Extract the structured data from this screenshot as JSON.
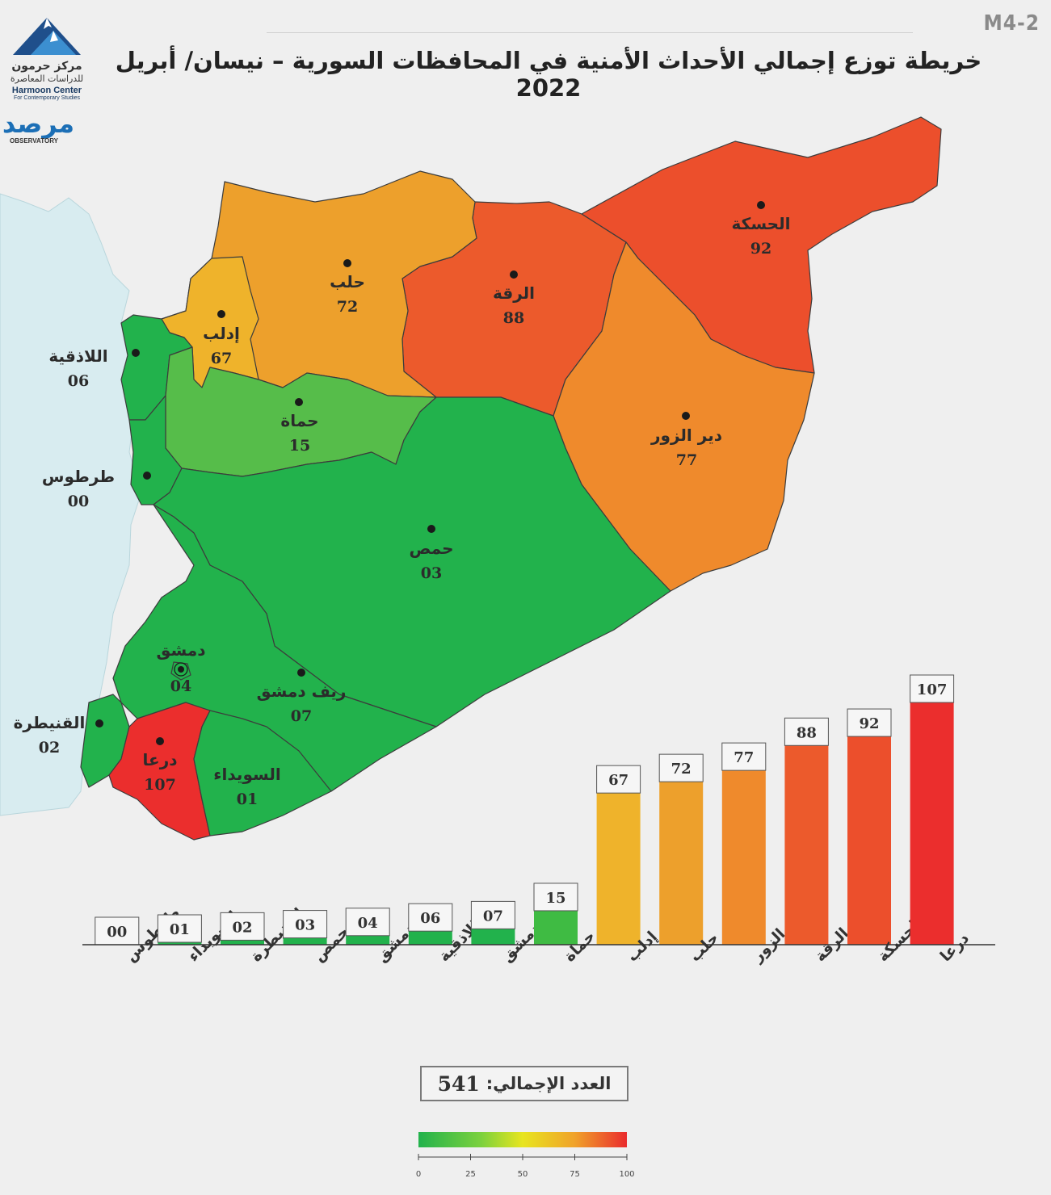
{
  "page_code": "M4-2",
  "title": "خريطة توزع إجمالي الأحداث الأمنية في المحافظات السورية – نيسان/ أبريل 2022",
  "logo": {
    "name_ar": "مركز حرمون",
    "subtitle_ar": "للدراسات المعاصرة",
    "name_en": "Harmoon Center",
    "subtitle_en": "For Contemporary Studies",
    "observatory_ar": "مرصد",
    "observatory_en": "OBSERVATORY"
  },
  "colors": {
    "sea": "#d8ecf0",
    "green": "#22b24c",
    "light_green": "#56bd4a",
    "yellow_orange": "#efb32b",
    "orange": "#eda02c",
    "dark_orange": "#ef8a2c",
    "red_orange": "#ec5a2c",
    "red": "#eb2e2d"
  },
  "map_labels": [
    {
      "id": "hasakah",
      "name": "الحسكة",
      "value": "92"
    },
    {
      "id": "raqqa",
      "name": "الرقة",
      "value": "88"
    },
    {
      "id": "aleppo",
      "name": "حلب",
      "value": "72"
    },
    {
      "id": "idlib",
      "name": "إدلب",
      "value": "67"
    },
    {
      "id": "latakia",
      "name": "اللاذقية",
      "value": "06"
    },
    {
      "id": "hama",
      "name": "حماة",
      "value": "15"
    },
    {
      "id": "deir",
      "name": "دير الزور",
      "value": "77"
    },
    {
      "id": "tartus",
      "name": "طرطوس",
      "value": "00"
    },
    {
      "id": "homs",
      "name": "حمص",
      "value": "03"
    },
    {
      "id": "damascus",
      "name": "دمشق",
      "value": "04"
    },
    {
      "id": "rifdimashq",
      "name": "ريف دمشق",
      "value": "07"
    },
    {
      "id": "quneitra",
      "name": "القنيطرة",
      "value": "02"
    },
    {
      "id": "daraa",
      "name": "درعا",
      "value": "107"
    },
    {
      "id": "suwayda",
      "name": "السويداء",
      "value": "01"
    }
  ],
  "chart_data": {
    "type": "bar",
    "categories": [
      "طرطوس",
      "السويداء",
      "القنيطرة",
      "حمص",
      "دمشق",
      "اللاذقية",
      "ريف دمشق",
      "حماة",
      "إدلب",
      "حلب",
      "دير الزور",
      "الرقة",
      "الحسكة",
      "درعا"
    ],
    "values": [
      0,
      1,
      2,
      3,
      4,
      6,
      7,
      15,
      67,
      72,
      77,
      88,
      92,
      107
    ],
    "value_labels": [
      "00",
      "01",
      "02",
      "03",
      "04",
      "06",
      "07",
      "15",
      "67",
      "72",
      "77",
      "88",
      "92",
      "107"
    ],
    "bar_colors": [
      "#22b24c",
      "#22b24c",
      "#22b24c",
      "#22b24c",
      "#22b24c",
      "#22b24c",
      "#22b24c",
      "#3fbb43",
      "#efb32b",
      "#eda02c",
      "#ef8a2c",
      "#ec5a2c",
      "#ec4f2c",
      "#eb2e2d"
    ],
    "ylim": [
      0,
      107
    ]
  },
  "total": {
    "label": "العدد الإجمالي:",
    "value": "541"
  },
  "legend_scale": {
    "ticks": [
      "0",
      "25",
      "50",
      "75",
      "100"
    ],
    "colors": [
      "#22b24c",
      "#7bd13d",
      "#e8e51f",
      "#f0a22a",
      "#ea2b2d"
    ]
  }
}
